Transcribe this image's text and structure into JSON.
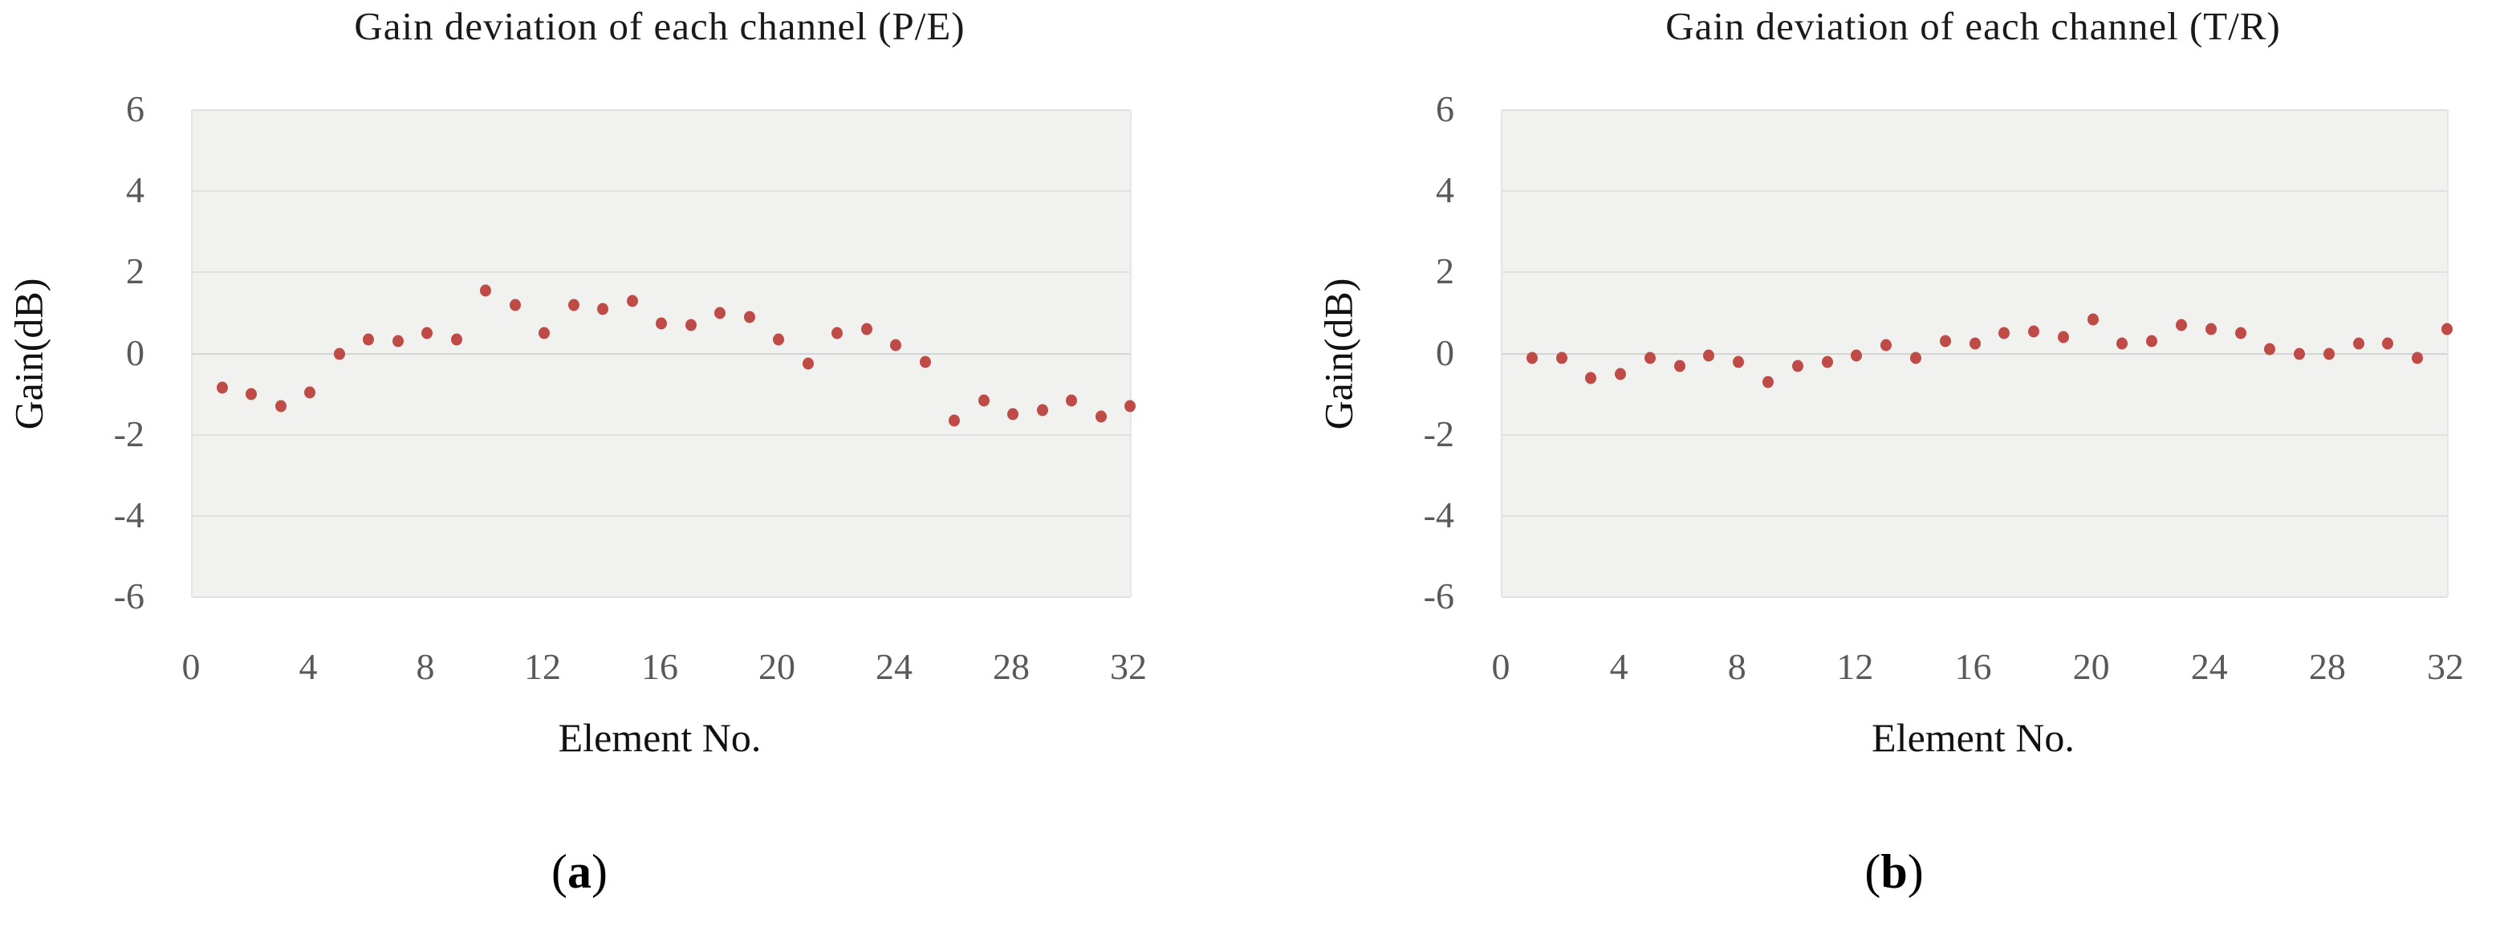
{
  "figure": {
    "panels": [
      {
        "caption_open": "(",
        "caption_letter": "a",
        "caption_close": ")"
      },
      {
        "caption_open": "(",
        "caption_letter": "b",
        "caption_close": ")"
      }
    ],
    "colors": {
      "marker": "#bf4b47",
      "plot_background": "#f1f1f0",
      "gridline": "#e0e0e0",
      "zero_gridline": "#d4d4d4",
      "tick_text": "#595959",
      "title_text": "#1a1a1a"
    }
  },
  "chart_data": [
    {
      "type": "scatter",
      "title": "Gain deviation of each channel (P/E)",
      "xlabel": "Element No.",
      "ylabel": "Gain(dB)",
      "xlim": [
        0,
        32
      ],
      "ylim": [
        -6,
        6
      ],
      "x_ticks": [
        0,
        4,
        8,
        12,
        16,
        20,
        24,
        28,
        32
      ],
      "y_ticks": [
        6,
        4,
        2,
        0,
        -2,
        -4,
        -6
      ],
      "grid": "horizontal-only",
      "legend": "none",
      "marker": "circle",
      "marker_color": "#bf4b47",
      "x": [
        1,
        2,
        3,
        4,
        5,
        6,
        7,
        8,
        9,
        10,
        11,
        12,
        13,
        14,
        15,
        16,
        17,
        18,
        19,
        20,
        21,
        22,
        23,
        24,
        25,
        26,
        27,
        28,
        29,
        30,
        31,
        32
      ],
      "y": [
        -0.85,
        -1.0,
        -1.3,
        -0.95,
        0.0,
        0.35,
        0.3,
        0.5,
        0.35,
        1.55,
        1.2,
        0.5,
        1.2,
        1.1,
        1.3,
        0.75,
        0.7,
        1.0,
        0.9,
        0.35,
        -0.25,
        0.5,
        0.6,
        0.2,
        -0.2,
        -1.65,
        -1.15,
        -1.5,
        -1.4,
        -1.15,
        -1.55,
        -1.3
      ]
    },
    {
      "type": "scatter",
      "title": "Gain deviation of each channel (T/R)",
      "xlabel": "Element No.",
      "ylabel": "Gain(dB)",
      "xlim": [
        0,
        32
      ],
      "ylim": [
        -6,
        6
      ],
      "x_ticks": [
        0,
        4,
        8,
        12,
        16,
        20,
        24,
        28,
        32
      ],
      "y_ticks": [
        6,
        4,
        2,
        0,
        -2,
        -4,
        -6
      ],
      "grid": "horizontal-only",
      "legend": "none",
      "marker": "circle",
      "marker_color": "#bf4b47",
      "x": [
        1,
        2,
        3,
        4,
        5,
        6,
        7,
        8,
        9,
        10,
        11,
        12,
        13,
        14,
        15,
        16,
        17,
        18,
        19,
        20,
        21,
        22,
        23,
        24,
        25,
        26,
        27,
        28,
        29,
        30,
        31,
        32
      ],
      "y": [
        -0.1,
        -0.1,
        -0.6,
        -0.5,
        -0.1,
        -0.3,
        -0.05,
        -0.2,
        -0.7,
        -0.3,
        -0.2,
        -0.05,
        0.2,
        -0.1,
        0.3,
        0.25,
        0.5,
        0.55,
        0.4,
        0.85,
        0.25,
        0.3,
        0.7,
        0.6,
        0.5,
        0.1,
        0.0,
        0.0,
        0.25,
        0.25,
        -0.1,
        0.6
      ]
    }
  ]
}
